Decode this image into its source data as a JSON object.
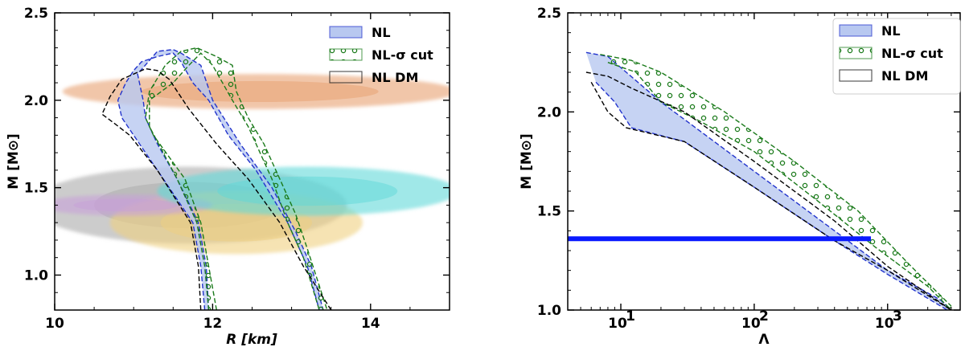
{
  "chart_data": [
    {
      "type": "area",
      "title": "",
      "xlabel": "R [km]",
      "ylabel": "M [M⊙]",
      "xlim": [
        10,
        15
      ],
      "ylim": [
        0.8,
        2.5
      ],
      "x_ticks": [
        10,
        12,
        14
      ],
      "x_tick_labels": [
        "10",
        "12",
        "14"
      ],
      "y_ticks": [
        1.0,
        1.5,
        2.0,
        2.5
      ],
      "y_tick_labels": [
        "1.0",
        "1.5",
        "2.0",
        "2.5"
      ],
      "legend_position": "top-right",
      "legend": [
        "NL",
        "NL-σ cut",
        "NL DM"
      ],
      "series": [
        {
          "name": "NL",
          "style": "filled band, blue dashed edges",
          "color": "#2233cc",
          "fill": "#b8c8f0",
          "upper_edge": [
            [
              11.95,
              0.8
            ],
            [
              11.92,
              1.05
            ],
            [
              11.82,
              1.3
            ],
            [
              11.55,
              1.55
            ],
            [
              11.3,
              1.75
            ],
            [
              11.15,
              1.9
            ],
            [
              11.12,
              2.0
            ],
            [
              11.05,
              2.15
            ],
            [
              11.3,
              2.28
            ],
            [
              11.5,
              2.29
            ],
            [
              11.6,
              2.27
            ],
            [
              11.85,
              2.2
            ],
            [
              12.0,
              2.0
            ],
            [
              12.35,
              1.75
            ],
            [
              12.75,
              1.5
            ],
            [
              13.05,
              1.25
            ],
            [
              13.25,
              1.05
            ],
            [
              13.4,
              0.8
            ]
          ],
          "lower_edge": [
            [
              11.9,
              0.8
            ],
            [
              11.85,
              1.05
            ],
            [
              11.75,
              1.3
            ],
            [
              11.3,
              1.6
            ],
            [
              11.0,
              1.8
            ],
            [
              10.85,
              1.9
            ],
            [
              10.8,
              2.0
            ],
            [
              10.9,
              2.1
            ],
            [
              11.0,
              2.17
            ],
            [
              11.1,
              2.22
            ],
            [
              11.3,
              2.25
            ],
            [
              11.5,
              2.27
            ],
            [
              11.6,
              2.22
            ],
            [
              11.75,
              2.1
            ],
            [
              11.95,
              2.0
            ],
            [
              12.2,
              1.8
            ],
            [
              12.55,
              1.6
            ],
            [
              12.95,
              1.3
            ],
            [
              13.2,
              1.05
            ],
            [
              13.35,
              0.8
            ]
          ]
        },
        {
          "name": "NL-σ cut",
          "style": "dotted hatch, green dashed edges",
          "color": "#1a7a1a",
          "upper_edge": [
            [
              12.05,
              0.8
            ],
            [
              11.95,
              1.05
            ],
            [
              11.85,
              1.3
            ],
            [
              11.65,
              1.55
            ],
            [
              11.25,
              1.8
            ],
            [
              11.15,
              1.9
            ],
            [
              11.2,
              2.05
            ],
            [
              11.4,
              2.2
            ],
            [
              11.6,
              2.28
            ],
            [
              11.8,
              2.3
            ],
            [
              12.05,
              2.25
            ],
            [
              12.25,
              2.2
            ],
            [
              12.3,
              2.05
            ],
            [
              12.45,
              1.9
            ],
            [
              12.65,
              1.75
            ],
            [
              12.85,
              1.55
            ],
            [
              13.05,
              1.35
            ],
            [
              13.2,
              1.15
            ],
            [
              13.45,
              0.8
            ]
          ],
          "lower_edge": [
            [
              11.95,
              0.8
            ],
            [
              11.9,
              1.05
            ],
            [
              11.8,
              1.3
            ],
            [
              11.55,
              1.55
            ],
            [
              11.2,
              1.85
            ],
            [
              11.2,
              2.0
            ],
            [
              11.5,
              2.1
            ],
            [
              11.7,
              2.2
            ],
            [
              11.85,
              2.27
            ],
            [
              12.0,
              2.2
            ],
            [
              12.25,
              2.0
            ],
            [
              12.45,
              1.85
            ],
            [
              12.75,
              1.55
            ],
            [
              12.95,
              1.3
            ],
            [
              13.15,
              1.1
            ],
            [
              13.35,
              0.8
            ]
          ]
        },
        {
          "name": "NL DM",
          "style": "dashed outline",
          "color": "#000000",
          "upper_edge": [
            [
              11.85,
              0.8
            ],
            [
              11.82,
              1.05
            ],
            [
              11.72,
              1.3
            ],
            [
              11.3,
              1.6
            ],
            [
              10.95,
              1.8
            ],
            [
              10.75,
              1.87
            ],
            [
              10.6,
              1.92
            ],
            [
              10.7,
              2.02
            ],
            [
              10.85,
              2.12
            ],
            [
              11.0,
              2.15
            ],
            [
              11.15,
              2.18
            ],
            [
              11.3,
              2.17
            ],
            [
              11.45,
              2.12
            ],
            [
              11.7,
              1.95
            ],
            [
              12.05,
              1.75
            ],
            [
              12.45,
              1.55
            ],
            [
              12.85,
              1.3
            ],
            [
              13.15,
              1.05
            ],
            [
              13.5,
              0.8
            ]
          ]
        }
      ],
      "constraint_regions": [
        {
          "color": "#e8a070",
          "center": [
            12.6,
            2.05
          ],
          "half_width_r": 2.5,
          "half_height_m": 0.1
        },
        {
          "color": "#aaaaaa",
          "center": [
            11.7,
            1.4
          ],
          "half_width_r": 2.0,
          "half_height_m": 0.22
        },
        {
          "color": "#f0d080",
          "center": [
            12.3,
            1.3
          ],
          "half_width_r": 1.6,
          "half_height_m": 0.18
        },
        {
          "color": "#c8a0d8",
          "center": [
            10.9,
            1.4
          ],
          "half_width_r": 1.1,
          "half_height_m": 0.06
        },
        {
          "color": "#60d8d8",
          "center": [
            13.2,
            1.48
          ],
          "half_width_r": 1.9,
          "half_height_m": 0.14
        }
      ]
    },
    {
      "type": "area",
      "title": "",
      "xlabel": "Λ",
      "ylabel": "M [M⊙]",
      "x_scale": "log",
      "xlim": [
        4,
        3500
      ],
      "ylim": [
        1.0,
        2.5
      ],
      "x_ticks": [
        10,
        100,
        1000
      ],
      "x_tick_labels": [
        "10",
        "10",
        "10"
      ],
      "x_tick_exponents": [
        "1",
        "2",
        "3"
      ],
      "y_ticks": [
        1.0,
        1.5,
        2.0,
        2.5
      ],
      "y_tick_labels": [
        "1.0",
        "1.5",
        "2.0",
        "2.5"
      ],
      "legend_position": "top-right",
      "legend": [
        "NL",
        "NL-σ cut",
        "NL DM"
      ],
      "series": [
        {
          "name": "NL",
          "style": "filled band, blue dashed edges",
          "color": "#2233cc",
          "fill": "#b8c8f0",
          "upper_edge": [
            [
              5.5,
              2.3
            ],
            [
              8,
              2.28
            ],
            [
              20,
              2.05
            ],
            [
              100,
              1.7
            ],
            [
              400,
              1.4
            ],
            [
              1000,
              1.2
            ],
            [
              2500,
              1.05
            ],
            [
              3000,
              1.0
            ]
          ],
          "lower_edge": [
            [
              6.5,
              2.15
            ],
            [
              9,
              2.05
            ],
            [
              12,
              1.92
            ],
            [
              30,
              1.85
            ],
            [
              100,
              1.62
            ],
            [
              400,
              1.35
            ],
            [
              1000,
              1.18
            ],
            [
              2500,
              1.02
            ],
            [
              2800,
              1.0
            ]
          ]
        },
        {
          "name": "NL-σ cut",
          "style": "dotted hatch, green dashed edges",
          "color": "#1a7a1a",
          "upper_edge": [
            [
              7,
              2.29
            ],
            [
              12,
              2.26
            ],
            [
              20,
              2.2
            ],
            [
              60,
              2.0
            ],
            [
              200,
              1.75
            ],
            [
              600,
              1.5
            ],
            [
              1500,
              1.22
            ],
            [
              3000,
              1.02
            ]
          ],
          "lower_edge": [
            [
              8,
              2.25
            ],
            [
              13,
              2.2
            ],
            [
              20,
              2.05
            ],
            [
              40,
              1.95
            ],
            [
              100,
              1.8
            ],
            [
              300,
              1.55
            ],
            [
              800,
              1.32
            ],
            [
              2000,
              1.12
            ],
            [
              3000,
              1.0
            ]
          ]
        },
        {
          "name": "NL DM",
          "style": "dashed outline",
          "color": "#000000",
          "upper_edge": [
            [
              5.5,
              2.2
            ],
            [
              8,
              2.18
            ],
            [
              12,
              2.12
            ],
            [
              30,
              2.0
            ],
            [
              100,
              1.75
            ],
            [
              400,
              1.45
            ],
            [
              1000,
              1.22
            ],
            [
              3000,
              1.0
            ]
          ],
          "lower_edge": [
            [
              6,
              2.15
            ],
            [
              8,
              2.0
            ],
            [
              11,
              1.92
            ],
            [
              30,
              1.85
            ],
            [
              100,
              1.62
            ],
            [
              400,
              1.35
            ],
            [
              1000,
              1.2
            ],
            [
              3000,
              1.0
            ]
          ]
        }
      ],
      "reference_line": {
        "m": 1.36,
        "lambda_range": [
          4,
          750
        ],
        "color": "#0a1aff"
      }
    }
  ]
}
